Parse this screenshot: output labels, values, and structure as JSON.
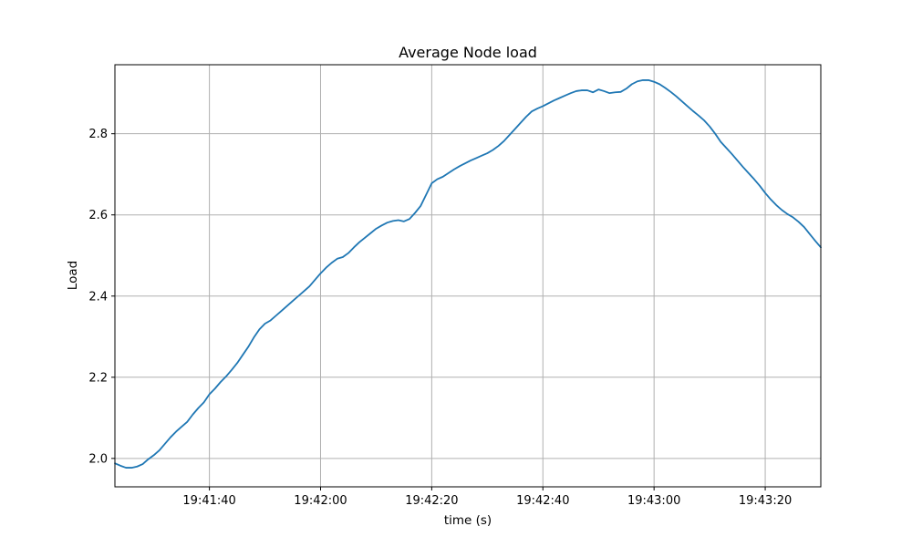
{
  "figure": {
    "background": "#ffffff",
    "plot_background": "#ffffff"
  },
  "chart_data": {
    "type": "line",
    "title": "Average Node load",
    "xlabel": "time (s)",
    "ylabel": "Load",
    "grid": true,
    "legend": null,
    "line_color": "#1f77b4",
    "grid_color": "#b0b0b0",
    "spine_color": "#000000",
    "x_tick_labels": [
      "19:41:40",
      "19:42:00",
      "19:42:20",
      "19:42:40",
      "19:43:00",
      "19:43:20"
    ],
    "x_tick_seconds": [
      17,
      37,
      57,
      77,
      97,
      117
    ],
    "y_ticks": [
      2.0,
      2.2,
      2.4,
      2.6,
      2.8
    ],
    "xlim_seconds": [
      0,
      127
    ],
    "x_range_time": [
      "19:41:23",
      "19:43:30"
    ],
    "ylim": [
      1.93,
      2.97
    ],
    "sample_interval_s": 1,
    "series": [
      {
        "name": "average node load",
        "x_seconds": [
          0,
          1,
          2,
          3,
          4,
          5,
          6,
          7,
          8,
          9,
          10,
          11,
          12,
          13,
          14,
          15,
          16,
          17,
          18,
          19,
          20,
          21,
          22,
          23,
          24,
          25,
          26,
          27,
          28,
          29,
          30,
          31,
          32,
          33,
          34,
          35,
          36,
          37,
          38,
          39,
          40,
          41,
          42,
          43,
          44,
          45,
          46,
          47,
          48,
          49,
          50,
          51,
          52,
          53,
          54,
          55,
          56,
          57,
          58,
          59,
          60,
          61,
          62,
          63,
          64,
          65,
          66,
          67,
          68,
          69,
          70,
          71,
          72,
          73,
          74,
          75,
          76,
          77,
          78,
          79,
          80,
          81,
          82,
          83,
          84,
          85,
          86,
          87,
          88,
          89,
          90,
          91,
          92,
          93,
          94,
          95,
          96,
          97,
          98,
          99,
          100,
          101,
          102,
          103,
          104,
          105,
          106,
          107,
          108,
          109,
          110,
          111,
          112,
          113,
          114,
          115,
          116,
          117,
          118,
          119,
          120,
          121,
          122,
          123,
          124,
          125,
          126,
          127
        ],
        "values": [
          1.988,
          1.982,
          1.977,
          1.977,
          1.98,
          1.986,
          1.998,
          2.008,
          2.02,
          2.036,
          2.052,
          2.066,
          2.078,
          2.09,
          2.108,
          2.124,
          2.138,
          2.158,
          2.172,
          2.188,
          2.202,
          2.218,
          2.235,
          2.255,
          2.275,
          2.298,
          2.318,
          2.332,
          2.34,
          2.352,
          2.364,
          2.376,
          2.388,
          2.4,
          2.412,
          2.424,
          2.44,
          2.456,
          2.47,
          2.482,
          2.492,
          2.496,
          2.506,
          2.52,
          2.533,
          2.544,
          2.555,
          2.566,
          2.574,
          2.581,
          2.585,
          2.587,
          2.584,
          2.59,
          2.605,
          2.622,
          2.65,
          2.678,
          2.688,
          2.694,
          2.703,
          2.712,
          2.72,
          2.727,
          2.734,
          2.74,
          2.746,
          2.752,
          2.76,
          2.77,
          2.782,
          2.797,
          2.812,
          2.827,
          2.842,
          2.855,
          2.862,
          2.868,
          2.875,
          2.882,
          2.888,
          2.894,
          2.9,
          2.905,
          2.907,
          2.907,
          2.902,
          2.909,
          2.905,
          2.9,
          2.902,
          2.903,
          2.911,
          2.922,
          2.929,
          2.932,
          2.932,
          2.928,
          2.922,
          2.913,
          2.903,
          2.892,
          2.88,
          2.868,
          2.856,
          2.845,
          2.833,
          2.818,
          2.8,
          2.78,
          2.765,
          2.75,
          2.734,
          2.718,
          2.703,
          2.688,
          2.672,
          2.654,
          2.638,
          2.624,
          2.612,
          2.602,
          2.594,
          2.583,
          2.57,
          2.553,
          2.536,
          2.52
        ]
      }
    ]
  }
}
